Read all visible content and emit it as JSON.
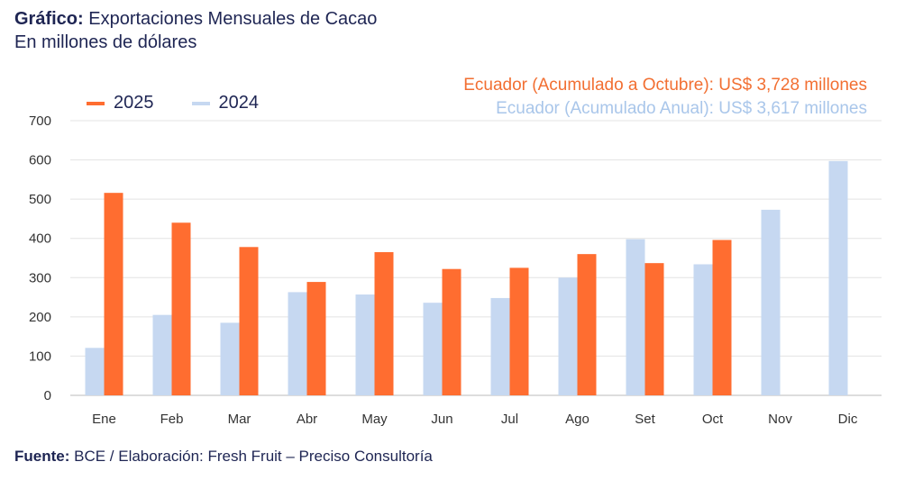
{
  "header": {
    "title_bold": "Gráfico:",
    "title": " Exportaciones Mensuales de Cacao",
    "subtitle": "En millones de dólares"
  },
  "annotations": {
    "line1": "Ecuador (Acumulado a Octubre): US$ 3,728 millones",
    "line2": "Ecuador (Acumulado Anual): US$ 3,617 millones"
  },
  "footer": {
    "bold": "Fuente:",
    "text": " BCE / Elaboración: Fresh Fruit – Preciso Consultoría"
  },
  "chart_data": {
    "type": "bar",
    "categories": [
      "Ene",
      "Feb",
      "Mar",
      "Abr",
      "May",
      "Jun",
      "Jul",
      "Ago",
      "Set",
      "Oct",
      "Nov",
      "Dic"
    ],
    "series": [
      {
        "name": "2024",
        "color": "#c6d8f1",
        "values": [
          121,
          205,
          185,
          263,
          257,
          236,
          248,
          300,
          398,
          334,
          473,
          597
        ]
      },
      {
        "name": "2025",
        "color": "#ff6d30",
        "values": [
          516,
          440,
          378,
          289,
          365,
          322,
          325,
          360,
          337,
          396,
          null,
          null
        ]
      }
    ],
    "legend_order": [
      "2025",
      "2024"
    ],
    "yticks": [
      0,
      100,
      200,
      300,
      400,
      500,
      600,
      700
    ],
    "ylim": [
      0,
      700
    ],
    "grid": true,
    "legend_placement": "top-left"
  }
}
